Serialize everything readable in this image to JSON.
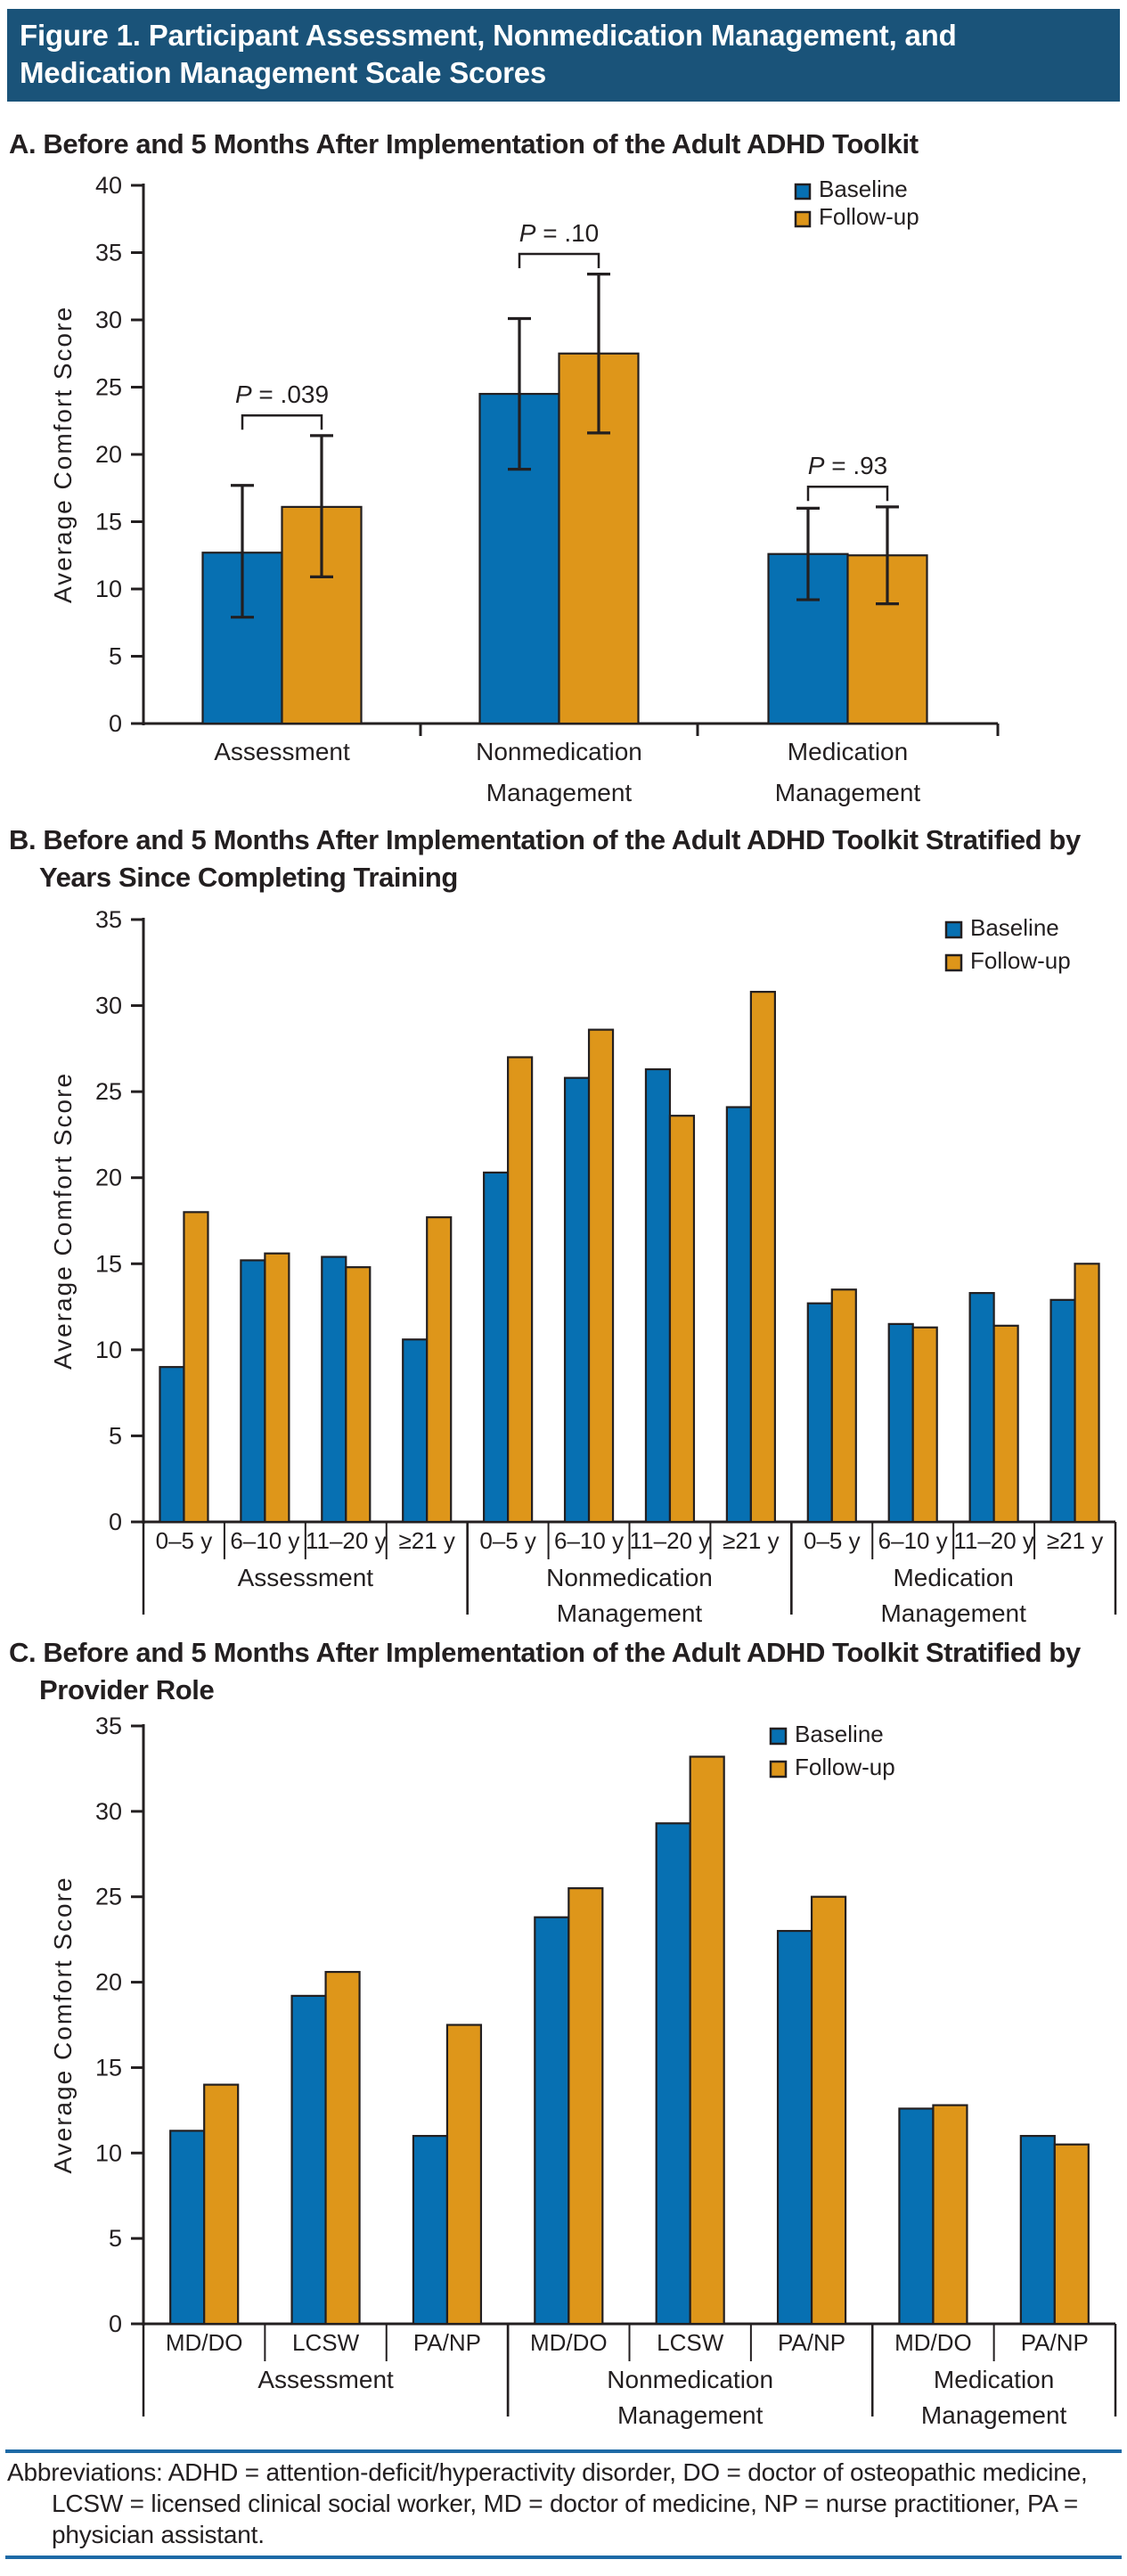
{
  "header": {
    "title_line1": "Figure 1. Participant Assessment, Nonmedication Management, and",
    "title_line2": "Medication Management Scale Scores"
  },
  "sections": [
    {
      "id": "A",
      "title_line1": "A. Before and 5 Months After Implementation of the Adult ADHD Toolkit",
      "title_line2": ""
    },
    {
      "id": "B",
      "title_line1": "B. Before and 5 Months After Implementation of the Adult ADHD Toolkit Stratified by",
      "title_line2": "Years Since Completing Training"
    },
    {
      "id": "C",
      "title_line1": "C. Before and 5 Months After Implementation of the Adult ADHD Toolkit Stratified by",
      "title_line2": "Provider Role"
    }
  ],
  "legend": {
    "baseline_label": "Baseline",
    "followup_label": "Follow-up"
  },
  "colors": {
    "baseline": "#0770B2",
    "followup": "#DE961A",
    "ink": "#231F20",
    "band": "#1A5379",
    "rule": "#1E6AA6"
  },
  "chart_data": [
    {
      "type": "bar",
      "ylabel": "Average Comfort Score",
      "ylim": [
        0,
        40
      ],
      "ystep": 5,
      "legend_position": "top-right",
      "categories": [
        {
          "lines": [
            "Assessment"
          ]
        },
        {
          "lines": [
            "Nonmedication",
            "Management"
          ]
        },
        {
          "lines": [
            "Medication",
            "Management"
          ]
        }
      ],
      "series": [
        {
          "name": "Baseline",
          "values": [
            12.7,
            24.5,
            12.6
          ],
          "err_low": [
            7.9,
            18.9,
            9.2
          ],
          "err_high": [
            17.7,
            30.1,
            16.0
          ]
        },
        {
          "name": "Follow-up",
          "values": [
            16.1,
            27.5,
            12.5
          ],
          "err_low": [
            10.9,
            21.6,
            8.9
          ],
          "err_high": [
            21.4,
            33.4,
            16.1
          ]
        }
      ],
      "p_values": [
        ".039",
        ".10",
        ".93"
      ],
      "p_symbol": "P",
      "p_equals": " = "
    },
    {
      "type": "bar",
      "ylabel": "Average Comfort Score",
      "ylim": [
        0,
        35
      ],
      "ystep": 5,
      "legend_position": "top-right",
      "groups": [
        {
          "label": [
            "Assessment"
          ],
          "subcats": [
            "0–5 y",
            "6–10 y",
            "11–20 y",
            "≥21 y"
          ]
        },
        {
          "label": [
            "Nonmedication",
            "Management"
          ],
          "subcats": [
            "0–5 y",
            "6–10 y",
            "11–20 y",
            "≥21 y"
          ]
        },
        {
          "label": [
            "Medication",
            "Management"
          ],
          "subcats": [
            "0–5 y",
            "6–10 y",
            "11–20 y",
            "≥21 y"
          ]
        }
      ],
      "series": [
        {
          "name": "Baseline",
          "values": [
            9.0,
            15.2,
            15.4,
            10.6,
            20.3,
            25.8,
            26.3,
            24.1,
            12.7,
            11.5,
            13.3,
            12.9
          ]
        },
        {
          "name": "Follow-up",
          "values": [
            18.0,
            15.6,
            14.8,
            17.7,
            27.0,
            28.6,
            23.6,
            30.8,
            13.5,
            11.3,
            11.4,
            15.0
          ]
        }
      ]
    },
    {
      "type": "bar",
      "ylabel": "Average Comfort Score",
      "ylim": [
        0,
        35
      ],
      "ystep": 5,
      "legend_position": "top-center-right",
      "groups": [
        {
          "label": [
            "Assessment"
          ],
          "subcats": [
            "MD/DO",
            "LCSW",
            "PA/NP"
          ]
        },
        {
          "label": [
            "Nonmedication",
            "Management"
          ],
          "subcats": [
            "MD/DO",
            "LCSW",
            "PA/NP"
          ]
        },
        {
          "label": [
            "Medication",
            "Management"
          ],
          "subcats": [
            "MD/DO",
            "PA/NP"
          ]
        }
      ],
      "series": [
        {
          "name": "Baseline",
          "values": [
            11.3,
            19.2,
            11.0,
            23.8,
            29.3,
            23.0,
            12.6,
            11.0
          ]
        },
        {
          "name": "Follow-up",
          "values": [
            14.0,
            20.6,
            17.5,
            25.5,
            33.2,
            25.0,
            12.8,
            10.5
          ]
        }
      ]
    }
  ],
  "footer": {
    "abbreviations": "Abbreviations: ADHD = attention-deficit/hyperactivity disorder, DO = doctor of osteopathic medicine, LCSW = licensed clinical social worker, MD = doctor of medicine, NP = nurse practitioner, PA = physician assistant."
  }
}
